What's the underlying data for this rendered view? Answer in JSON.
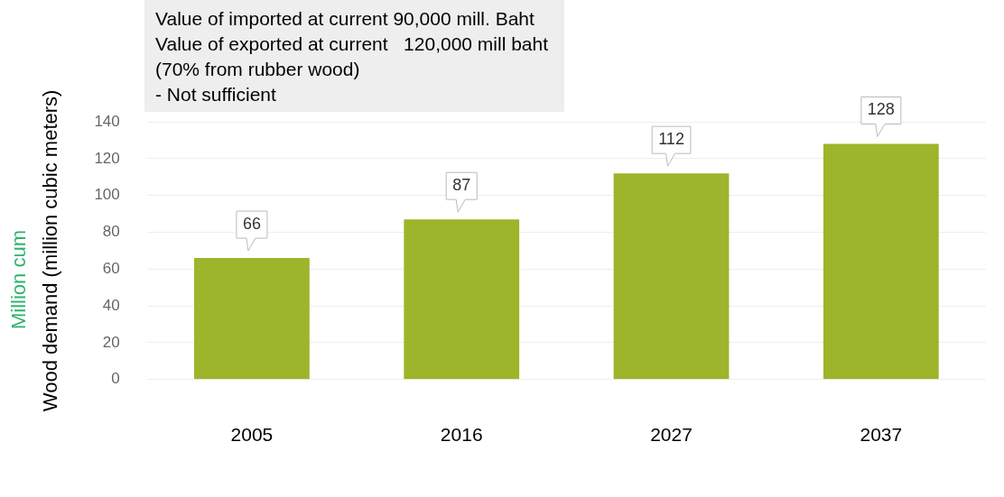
{
  "chart_data": {
    "type": "bar",
    "ylabel": "Wood demand (million cubic meters)",
    "categories": [
      "2005",
      "2016",
      "2027",
      "2037"
    ],
    "values": [
      66,
      87,
      112,
      128
    ],
    "color": "#9cb52a",
    "ylim": [
      0,
      140
    ],
    "yticks": [
      0,
      20,
      40,
      60,
      80,
      100,
      120,
      140
    ],
    "grid": "y",
    "legend": false,
    "data_labels": true,
    "annotations": [
      "Value of imported at current 90,000 mill. Baht",
      "Value of exported at current   120,000 mill baht",
      "(70% from rubber wood)",
      "- Not sufficient",
      "Million cum"
    ]
  }
}
